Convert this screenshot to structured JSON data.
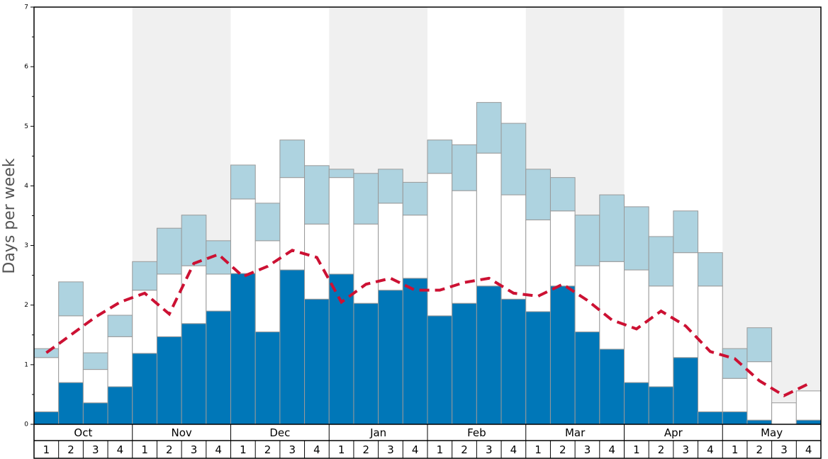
{
  "chart_data": {
    "type": "stacked-bar-line",
    "y_label": "Days per week",
    "months": [
      "Oct",
      "Nov",
      "Dec",
      "Jan",
      "Feb",
      "Mar",
      "Apr",
      "May"
    ],
    "categories": [
      "1",
      "2",
      "3",
      "4",
      "1",
      "2",
      "3",
      "4",
      "1",
      "2",
      "3",
      "4",
      "1",
      "2",
      "3",
      "4",
      "1",
      "2",
      "3",
      "4",
      "1",
      "2",
      "3",
      "4",
      "1",
      "2",
      "3",
      "4",
      "1",
      "2",
      "3",
      "4"
    ],
    "series": [
      {
        "color": "#0077b8",
        "values": [
          0.21,
          0.7,
          0.36,
          0.63,
          1.19,
          1.47,
          1.69,
          1.9,
          2.53,
          1.55,
          2.59,
          2.1,
          2.52,
          2.03,
          2.25,
          2.45,
          1.82,
          2.03,
          2.32,
          2.1,
          1.89,
          2.32,
          1.55,
          1.26,
          0.7,
          0.63,
          1.12,
          0.21,
          0.21,
          0.07,
          0,
          0.07
        ]
      },
      {
        "color": "#ffffff",
        "values": [
          0.91,
          1.12,
          0.56,
          0.84,
          1.06,
          1.05,
          0.97,
          0.62,
          1.25,
          1.53,
          1.55,
          1.26,
          1.62,
          1.33,
          1.46,
          1.06,
          2.39,
          1.89,
          2.23,
          1.75,
          1.54,
          1.26,
          1.11,
          1.47,
          1.89,
          1.69,
          1.76,
          2.11,
          0.56,
          0.98,
          0.36,
          0.49
        ]
      },
      {
        "color": "#aed3e0",
        "values": [
          0.15,
          0.57,
          0.28,
          0.36,
          0.48,
          0.77,
          0.85,
          0.56,
          0.57,
          0.63,
          0.63,
          0.98,
          0.14,
          0.85,
          0.57,
          0.55,
          0.56,
          0.77,
          0.85,
          1.2,
          0.85,
          0.56,
          0.85,
          1.12,
          1.06,
          0.83,
          0.7,
          0.56,
          0.5,
          0.57,
          0,
          0
        ]
      }
    ],
    "line": {
      "color": "#cc1133",
      "values": [
        1.2,
        1.5,
        1.8,
        2.05,
        2.2,
        1.85,
        2.7,
        2.85,
        2.48,
        2.65,
        2.92,
        2.8,
        2.05,
        2.35,
        2.45,
        2.25,
        2.25,
        2.38,
        2.45,
        2.2,
        2.15,
        2.35,
        2.08,
        1.75,
        1.6,
        1.9,
        1.65,
        1.22,
        1.1,
        0.73,
        0.48,
        0.68
      ]
    },
    "shade_color": "#f0f0f0",
    "ylim": [
      0,
      7
    ],
    "yticks": [
      0,
      1,
      2,
      3,
      4,
      5,
      6,
      7
    ],
    "yminorticks": [
      0.5,
      1.5,
      2.5,
      3.5,
      4.5,
      5.5,
      6.5
    ]
  }
}
